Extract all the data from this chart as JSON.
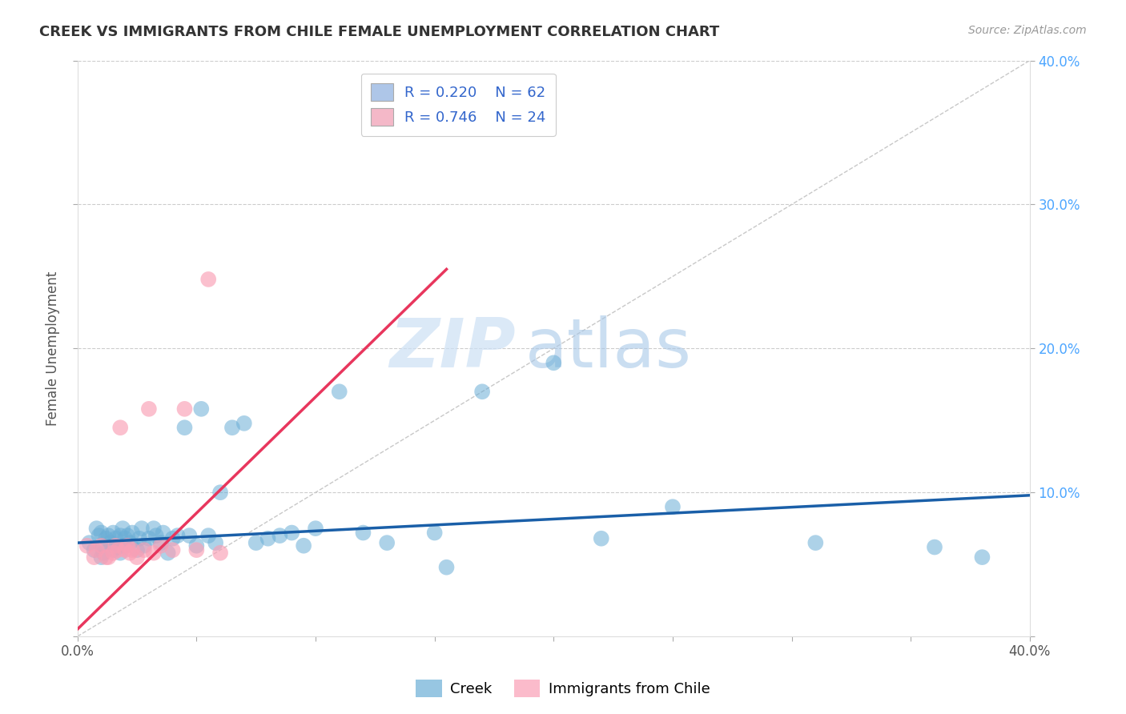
{
  "title": "CREEK VS IMMIGRANTS FROM CHILE FEMALE UNEMPLOYMENT CORRELATION CHART",
  "source": "Source: ZipAtlas.com",
  "ylabel": "Female Unemployment",
  "xlim": [
    0.0,
    0.4
  ],
  "ylim": [
    0.0,
    0.4
  ],
  "xticks": [
    0.0,
    0.05,
    0.1,
    0.15,
    0.2,
    0.25,
    0.3,
    0.35,
    0.4
  ],
  "yticks": [
    0.0,
    0.1,
    0.2,
    0.3,
    0.4
  ],
  "xticklabels": [
    "0.0%",
    "",
    "",
    "",
    "",
    "",
    "",
    "",
    "40.0%"
  ],
  "right_yticklabels": [
    "",
    "10.0%",
    "20.0%",
    "30.0%",
    "40.0%"
  ],
  "grid_yticks": [
    0.1,
    0.2,
    0.3,
    0.4
  ],
  "creek_color": "#6baed6",
  "chile_color": "#fa9fb5",
  "creek_R": 0.22,
  "creek_N": 62,
  "chile_R": 0.746,
  "chile_N": 24,
  "watermark_zip": "ZIP",
  "watermark_atlas": "atlas",
  "background_color": "#ffffff",
  "grid_color": "#cccccc",
  "creek_scatter_x": [
    0.005,
    0.007,
    0.008,
    0.009,
    0.01,
    0.01,
    0.01,
    0.011,
    0.012,
    0.013,
    0.014,
    0.015,
    0.015,
    0.016,
    0.017,
    0.018,
    0.018,
    0.019,
    0.02,
    0.02,
    0.021,
    0.022,
    0.023,
    0.025,
    0.026,
    0.027,
    0.028,
    0.03,
    0.032,
    0.033,
    0.035,
    0.036,
    0.038,
    0.04,
    0.042,
    0.045,
    0.047,
    0.05,
    0.052,
    0.055,
    0.058,
    0.06,
    0.065,
    0.07,
    0.075,
    0.08,
    0.085,
    0.09,
    0.095,
    0.1,
    0.11,
    0.12,
    0.13,
    0.15,
    0.155,
    0.17,
    0.2,
    0.22,
    0.25,
    0.31,
    0.36,
    0.38
  ],
  "creek_scatter_y": [
    0.065,
    0.06,
    0.075,
    0.07,
    0.055,
    0.063,
    0.072,
    0.058,
    0.068,
    0.07,
    0.065,
    0.06,
    0.072,
    0.068,
    0.062,
    0.07,
    0.058,
    0.075,
    0.063,
    0.068,
    0.07,
    0.065,
    0.072,
    0.06,
    0.068,
    0.075,
    0.063,
    0.068,
    0.075,
    0.07,
    0.065,
    0.072,
    0.058,
    0.068,
    0.07,
    0.145,
    0.07,
    0.063,
    0.158,
    0.07,
    0.065,
    0.1,
    0.145,
    0.148,
    0.065,
    0.068,
    0.07,
    0.072,
    0.063,
    0.075,
    0.17,
    0.072,
    0.065,
    0.072,
    0.048,
    0.17,
    0.19,
    0.068,
    0.09,
    0.065,
    0.062,
    0.055
  ],
  "chile_scatter_x": [
    0.004,
    0.007,
    0.008,
    0.01,
    0.012,
    0.013,
    0.015,
    0.016,
    0.017,
    0.018,
    0.02,
    0.021,
    0.022,
    0.023,
    0.025,
    0.028,
    0.03,
    0.032,
    0.035,
    0.04,
    0.045,
    0.05,
    0.055,
    0.06
  ],
  "chile_scatter_y": [
    0.063,
    0.055,
    0.06,
    0.063,
    0.055,
    0.055,
    0.058,
    0.063,
    0.06,
    0.145,
    0.06,
    0.063,
    0.058,
    0.06,
    0.055,
    0.06,
    0.158,
    0.058,
    0.063,
    0.06,
    0.158,
    0.06,
    0.248,
    0.058
  ],
  "legend_colors": [
    "#aec6e8",
    "#f4b8c8"
  ],
  "legend_text_color": "#3366cc",
  "title_color": "#333333",
  "chile_trendline_x0": 0.0,
  "chile_trendline_y0": 0.005,
  "chile_trendline_x1": 0.155,
  "chile_trendline_y1": 0.255,
  "creek_trendline_x0": 0.0,
  "creek_trendline_y0": 0.065,
  "creek_trendline_x1": 0.4,
  "creek_trendline_y1": 0.098
}
